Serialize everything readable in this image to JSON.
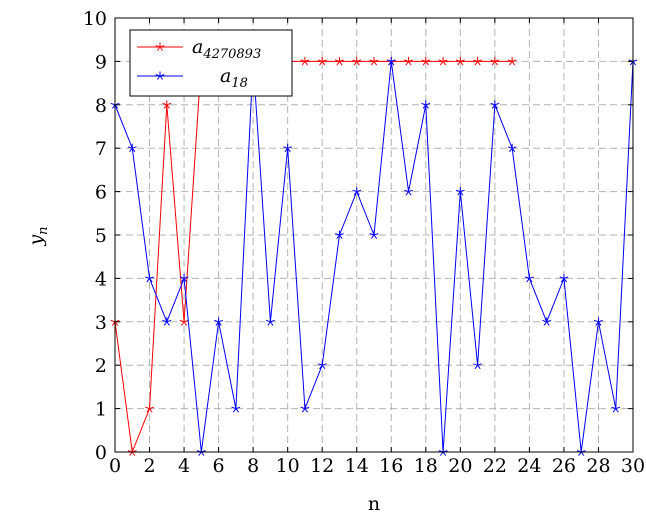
{
  "chart_data": {
    "type": "line",
    "xlabel": "n",
    "ylabel": {
      "base": "y",
      "sub": "n"
    },
    "xlim": [
      0,
      30
    ],
    "ylim": [
      0,
      10
    ],
    "xticks": [
      0,
      2,
      4,
      6,
      8,
      10,
      12,
      14,
      16,
      18,
      20,
      22,
      24,
      26,
      28,
      30
    ],
    "yticks": [
      0,
      1,
      2,
      3,
      4,
      5,
      6,
      7,
      8,
      9,
      10
    ],
    "grid": true,
    "legend_position": "top-left",
    "series": [
      {
        "name": {
          "base": "a",
          "sub": "4270893"
        },
        "color": "#ff0000",
        "marker": "star",
        "x": [
          0,
          1,
          2,
          3,
          4,
          5,
          6,
          7,
          8,
          9,
          10,
          11,
          12,
          13,
          14,
          15,
          16,
          17,
          18,
          19,
          20,
          21,
          22,
          23
        ],
        "y": [
          3,
          0,
          1,
          8,
          3,
          9,
          9,
          9,
          9,
          9,
          9,
          9,
          9,
          9,
          9,
          9,
          9,
          9,
          9,
          9,
          9,
          9,
          9,
          9
        ]
      },
      {
        "name": {
          "base": "a",
          "sub": "18"
        },
        "color": "#0000ff",
        "marker": "star",
        "x": [
          0,
          1,
          2,
          3,
          4,
          5,
          6,
          7,
          8,
          9,
          10,
          11,
          12,
          13,
          14,
          15,
          16,
          17,
          18,
          19,
          20,
          21,
          22,
          23,
          24,
          25,
          26,
          27,
          28,
          29,
          30
        ],
        "y": [
          8,
          7,
          4,
          3,
          4,
          0,
          3,
          1,
          9,
          3,
          7,
          1,
          2,
          5,
          6,
          5,
          9,
          6,
          8,
          0,
          6,
          2,
          8,
          7,
          4,
          3,
          4,
          0,
          3,
          1,
          9
        ]
      }
    ]
  }
}
